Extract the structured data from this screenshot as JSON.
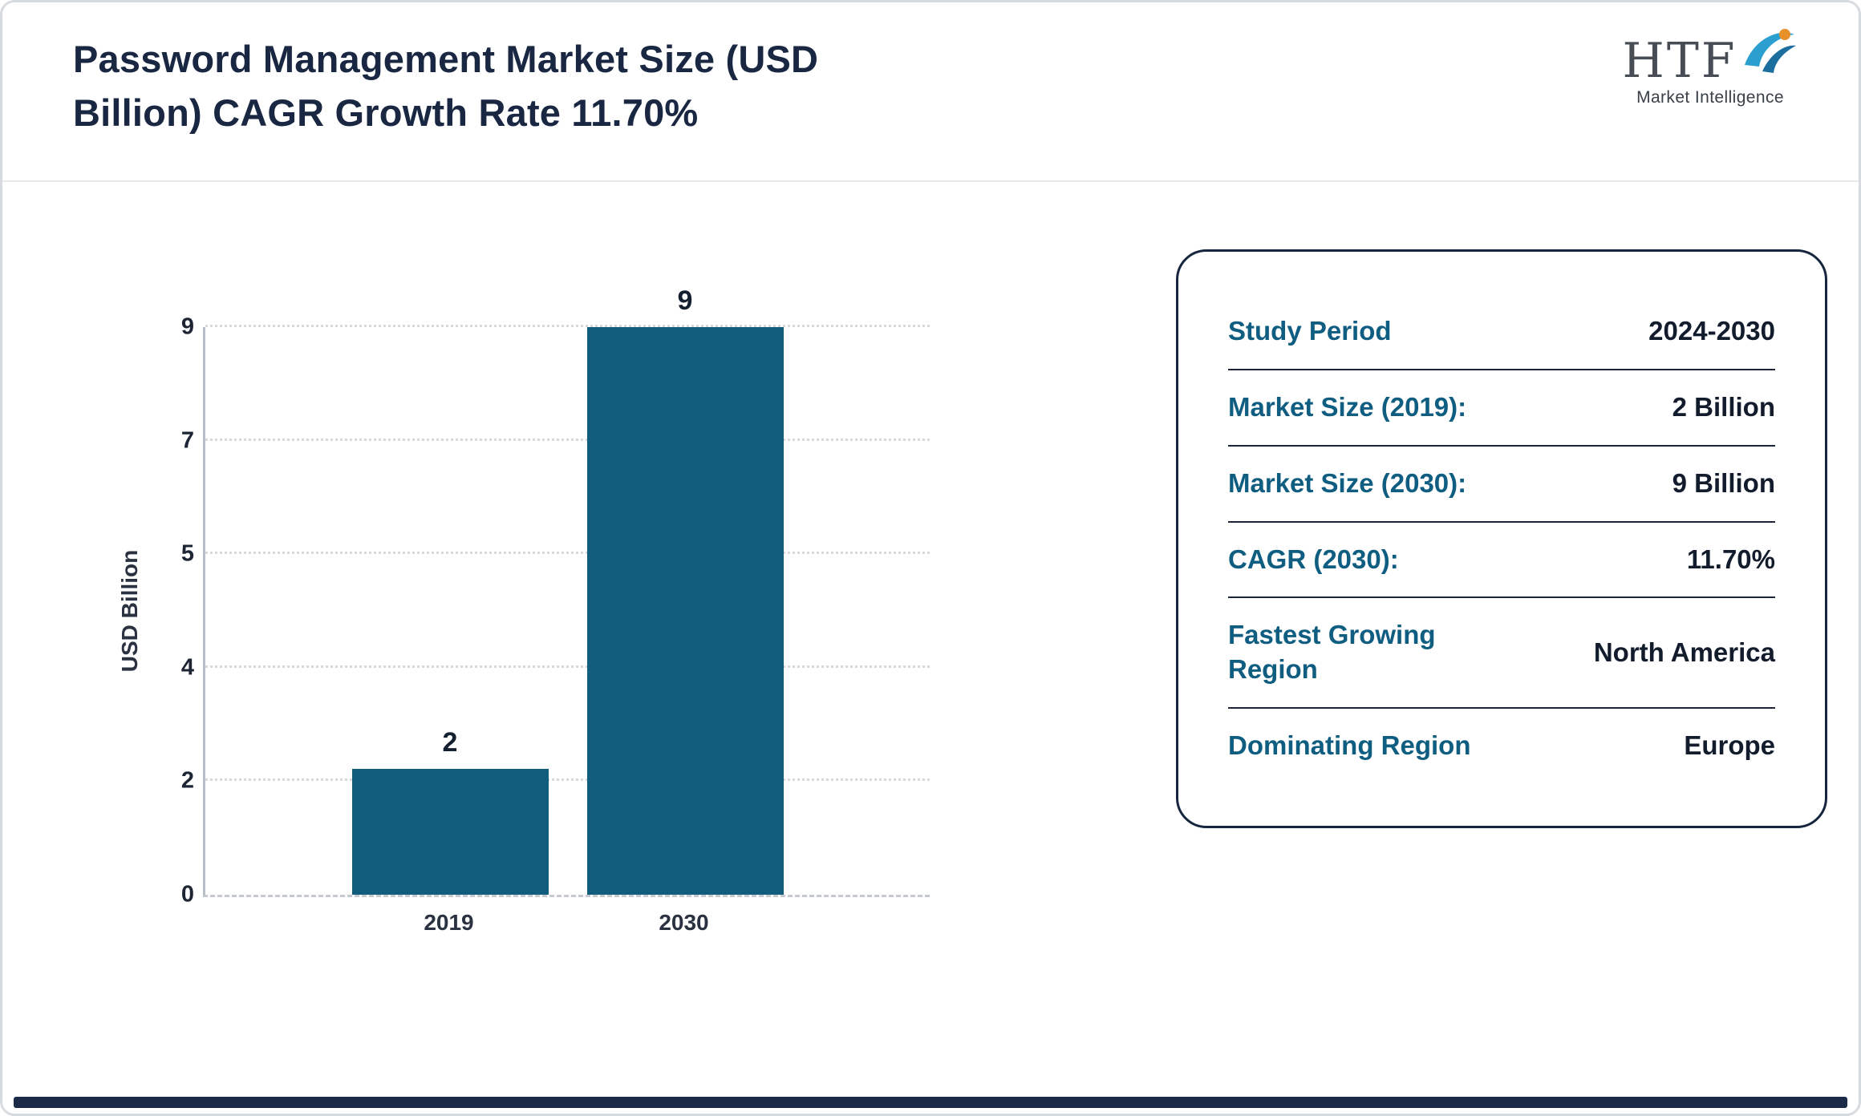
{
  "header": {
    "title_lines": [
      "Password Management Market Size (USD",
      "Billion) CAGR Growth Rate 11.70%"
    ]
  },
  "logo": {
    "text": "HTF",
    "subtext": "Market Intelligence",
    "accent_color": "#2a9fd0"
  },
  "chart_data": {
    "type": "bar",
    "title": "Password Management Market Size (USD Billion) CAGR Growth Rate 11.70%",
    "categories": [
      "2019",
      "2030"
    ],
    "values": [
      2,
      9
    ],
    "value_labels": [
      "2",
      "9"
    ],
    "xlabel": "",
    "ylabel": "USD Billion",
    "yticks": [
      0,
      2,
      4,
      5,
      7,
      9
    ],
    "ylim": [
      0,
      9
    ],
    "grid": true,
    "legend": "none",
    "bar_color": "#115d7e"
  },
  "info_card": {
    "rows": [
      {
        "label": "Study Period",
        "value": "2024-2030"
      },
      {
        "label": "Market Size (2019):",
        "value": "2 Billion"
      },
      {
        "label": "Market Size (2030):",
        "value": "9 Billion"
      },
      {
        "label": "CAGR (2030):",
        "value": "11.70%"
      },
      {
        "label": "Fastest Growing Region",
        "value": "North America"
      },
      {
        "label": "Dominating Region",
        "value": "Europe"
      }
    ]
  }
}
